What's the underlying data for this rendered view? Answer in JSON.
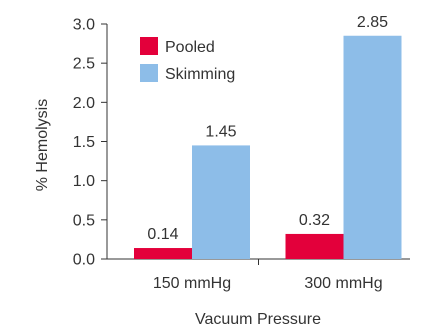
{
  "chart_data": {
    "type": "bar",
    "categories": [
      "150 mmHg",
      "300 mmHg"
    ],
    "series": [
      {
        "name": "Pooled",
        "values": [
          0.14,
          0.32
        ],
        "labels": [
          "0.14",
          "0.32"
        ],
        "color": "#e3003b"
      },
      {
        "name": "Skimming",
        "values": [
          1.45,
          2.85
        ],
        "labels": [
          "1.45",
          "2.85"
        ],
        "color": "#8dbde8"
      }
    ],
    "title": "",
    "xlabel": "Vacuum Pressure",
    "ylabel": "% Hemolysis",
    "ylim": [
      0,
      3.0
    ],
    "yticks": [
      "0.0",
      "0.5",
      "1.0",
      "1.5",
      "2.0",
      "2.5",
      "3.0"
    ],
    "grid": false,
    "legend_position": "top-left"
  }
}
